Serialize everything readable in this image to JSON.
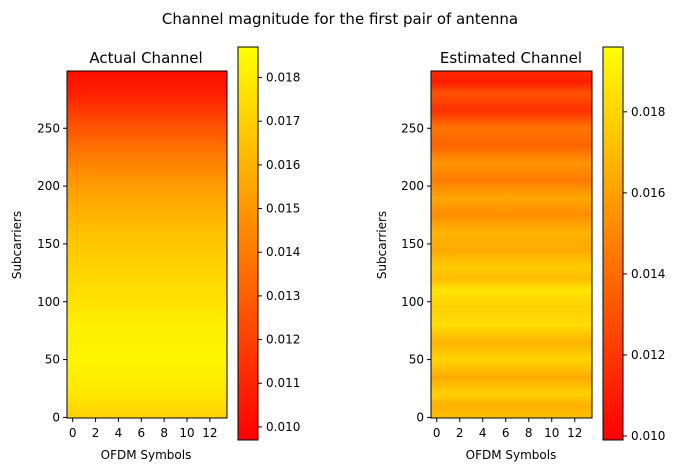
{
  "suptitle": "Channel magnitude for the first pair of antenna",
  "colors": {
    "low": "#ff0000",
    "mid": "#ff8000",
    "high": "#ffff00"
  },
  "chart_data": [
    {
      "type": "heatmap",
      "title": "Actual Channel",
      "xlabel": "OFDM Symbols",
      "ylabel": "Subcarriers",
      "x_range": [
        -0.5,
        13.5
      ],
      "y_range": [
        -0.5,
        299.5
      ],
      "xticks": [
        0,
        2,
        4,
        6,
        8,
        10,
        12
      ],
      "yticks": [
        0,
        50,
        100,
        150,
        200,
        250
      ],
      "colorbar": {
        "min": 0.0097,
        "max": 0.0187,
        "ticks": [
          "0.010",
          "0.011",
          "0.012",
          "0.013",
          "0.014",
          "0.015",
          "0.016",
          "0.017",
          "0.018"
        ]
      },
      "profile_subcarriers": [
        0,
        20,
        50,
        80,
        110,
        150,
        180,
        200,
        230,
        260,
        280,
        299
      ],
      "profile_values": [
        0.0171,
        0.0178,
        0.0183,
        0.0181,
        0.0175,
        0.0167,
        0.0159,
        0.0152,
        0.0138,
        0.0121,
        0.0108,
        0.0102
      ]
    },
    {
      "type": "heatmap",
      "title": "Estimated Channel",
      "xlabel": "OFDM Symbols",
      "ylabel": "Subcarriers",
      "x_range": [
        -0.5,
        13.5
      ],
      "y_range": [
        -0.5,
        299.5
      ],
      "xticks": [
        0,
        2,
        4,
        6,
        8,
        10,
        12
      ],
      "yticks": [
        0,
        50,
        100,
        150,
        200,
        250
      ],
      "colorbar": {
        "min": 0.0099,
        "max": 0.0196,
        "ticks": [
          "0.010",
          "0.012",
          "0.014",
          "0.016",
          "0.018"
        ]
      },
      "profile_subcarriers": [
        0,
        10,
        20,
        35,
        50,
        65,
        80,
        95,
        110,
        120,
        130,
        145,
        160,
        175,
        190,
        205,
        220,
        235,
        250,
        265,
        280,
        290,
        299
      ],
      "profile_values": [
        0.0172,
        0.0166,
        0.0178,
        0.0164,
        0.018,
        0.0167,
        0.0183,
        0.0178,
        0.0186,
        0.017,
        0.0176,
        0.0163,
        0.0167,
        0.0153,
        0.0162,
        0.0146,
        0.0155,
        0.0137,
        0.0143,
        0.0117,
        0.013,
        0.011,
        0.0115
      ]
    }
  ]
}
